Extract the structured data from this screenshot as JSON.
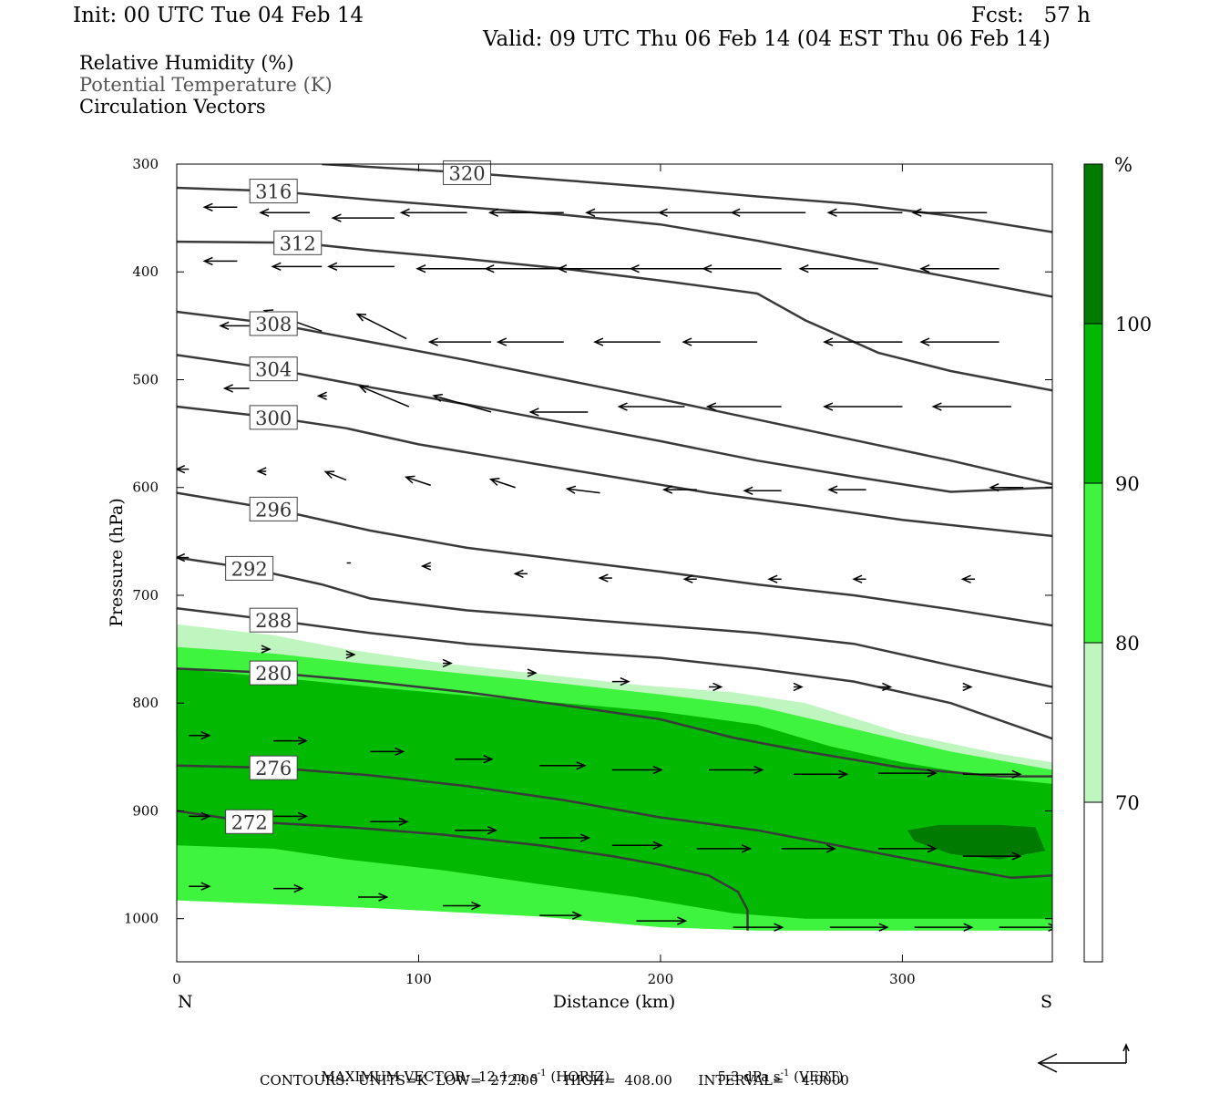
{
  "header": {
    "init": "Init: 00 UTC Tue 04 Feb 14",
    "fcst": "Fcst:   57 h",
    "valid": "Valid: 09 UTC Thu 06 Feb 14 (04 EST Thu 06 Feb 14)"
  },
  "legend_lines": {
    "rh": "Relative Humidity (%)",
    "theta": "Potential Temperature (K)",
    "vectors": "Circulation Vectors"
  },
  "footer": {
    "max_vector_label": "MAXIMUM VECTOR:",
    "horiz_value": "12.1 m s",
    "horiz_exp": "-1",
    "horiz_tag": "(HORIZ)",
    "vert_value": "5.3 dPa s",
    "vert_exp": "-1",
    "vert_tag": "(VERT)",
    "contours": "CONTOURS:  UNITS=K  LOW=  272.00      HIGH=  408.00      INTERVAL=    4.0000"
  },
  "colors": {
    "rh_70_80": "#bff5bf",
    "rh_80_90": "#3ff43f",
    "rh_90_100": "#00b900",
    "rh_100": "#007a00",
    "contour": "#3a3a3a",
    "vector": "#000000"
  },
  "chart_data": {
    "type": "cross-section",
    "xlabel": "Distance (km)",
    "ylabel": "Pressure (hPa)",
    "xlim": [
      0,
      362
    ],
    "ylim": [
      1040,
      300
    ],
    "y_scale": "linear-inverted",
    "x_ticks": [
      0,
      100,
      200,
      300
    ],
    "y_ticks": [
      300,
      400,
      500,
      600,
      700,
      800,
      900,
      1000
    ],
    "x_end_labels": {
      "left": "N",
      "right": "S"
    },
    "colorbar": {
      "unit": "%",
      "levels": [
        70,
        80,
        90,
        100
      ],
      "colors": [
        "#ffffff",
        "#bff5bf",
        "#3ff43f",
        "#00b900",
        "#007a00"
      ]
    },
    "rh_regions": [
      {
        "level": 70,
        "top": [
          [
            0,
            727
          ],
          [
            40,
            737
          ],
          [
            70,
            750
          ],
          [
            110,
            763
          ],
          [
            150,
            773
          ],
          [
            190,
            783
          ],
          [
            230,
            790
          ],
          [
            260,
            800
          ],
          [
            300,
            828
          ],
          [
            340,
            847
          ],
          [
            362,
            855
          ]
        ],
        "bottom": [
          [
            0,
            980
          ],
          [
            362,
            980
          ]
        ]
      },
      {
        "level": 80,
        "top": [
          [
            0,
            748
          ],
          [
            40,
            754
          ],
          [
            80,
            764
          ],
          [
            120,
            773
          ],
          [
            160,
            782
          ],
          [
            200,
            792
          ],
          [
            240,
            803
          ],
          [
            280,
            824
          ],
          [
            320,
            845
          ],
          [
            362,
            862
          ]
        ],
        "bottom": [
          [
            0,
            983
          ],
          [
            80,
            990
          ],
          [
            150,
            998
          ],
          [
            200,
            1008
          ],
          [
            240,
            1011
          ],
          [
            300,
            1011
          ],
          [
            362,
            1011
          ]
        ]
      },
      {
        "level": 90,
        "top": [
          [
            0,
            768
          ],
          [
            40,
            776
          ],
          [
            80,
            785
          ],
          [
            120,
            793
          ],
          [
            160,
            800
          ],
          [
            200,
            808
          ],
          [
            240,
            820
          ],
          [
            270,
            840
          ],
          [
            300,
            855
          ],
          [
            340,
            870
          ],
          [
            362,
            875
          ]
        ],
        "bottom": [
          [
            0,
            932
          ],
          [
            40,
            935
          ],
          [
            70,
            945
          ],
          [
            110,
            955
          ],
          [
            150,
            968
          ],
          [
            190,
            980
          ],
          [
            230,
            995
          ],
          [
            260,
            1000
          ],
          [
            300,
            1000
          ],
          [
            362,
            1000
          ]
        ]
      },
      {
        "level": 100,
        "top": [
          [
            302,
            918
          ],
          [
            315,
            913
          ],
          [
            340,
            913
          ],
          [
            355,
            915
          ],
          [
            359,
            937
          ],
          [
            340,
            945
          ],
          [
            320,
            940
          ],
          [
            305,
            928
          ]
        ],
        "bottom": []
      }
    ],
    "theta_contours": [
      {
        "value": 272,
        "points": [
          [
            0,
            900
          ],
          [
            30,
            910
          ],
          [
            70,
            915
          ],
          [
            110,
            922
          ],
          [
            150,
            932
          ],
          [
            180,
            942
          ],
          [
            200,
            950
          ],
          [
            220,
            960
          ],
          [
            232,
            975
          ],
          [
            236,
            992
          ],
          [
            236,
            1011
          ]
        ]
      },
      {
        "value": 276,
        "points": [
          [
            0,
            858
          ],
          [
            40,
            860
          ],
          [
            80,
            867
          ],
          [
            120,
            877
          ],
          [
            160,
            890
          ],
          [
            200,
            906
          ],
          [
            240,
            918
          ],
          [
            280,
            935
          ],
          [
            320,
            952
          ],
          [
            345,
            962
          ],
          [
            362,
            960
          ]
        ]
      },
      {
        "value": 280,
        "points": [
          [
            0,
            768
          ],
          [
            40,
            772
          ],
          [
            80,
            780
          ],
          [
            120,
            790
          ],
          [
            160,
            802
          ],
          [
            200,
            815
          ],
          [
            230,
            832
          ],
          [
            260,
            845
          ],
          [
            300,
            860
          ],
          [
            340,
            868
          ],
          [
            362,
            868
          ]
        ]
      },
      {
        "value": 288,
        "points": [
          [
            0,
            712
          ],
          [
            40,
            723
          ],
          [
            80,
            735
          ],
          [
            120,
            745
          ],
          [
            160,
            752
          ],
          [
            200,
            758
          ],
          [
            240,
            768
          ],
          [
            280,
            780
          ],
          [
            320,
            800
          ],
          [
            362,
            833
          ]
        ]
      },
      {
        "value": 292,
        "points": [
          [
            0,
            665
          ],
          [
            30,
            675
          ],
          [
            60,
            690
          ],
          [
            80,
            703
          ],
          [
            120,
            714
          ],
          [
            160,
            721
          ],
          [
            200,
            728
          ],
          [
            240,
            735
          ],
          [
            280,
            745
          ],
          [
            320,
            765
          ],
          [
            362,
            785
          ]
        ]
      },
      {
        "value": 296,
        "points": [
          [
            0,
            605
          ],
          [
            40,
            620
          ],
          [
            80,
            640
          ],
          [
            120,
            656
          ],
          [
            160,
            667
          ],
          [
            200,
            678
          ],
          [
            240,
            690
          ],
          [
            280,
            700
          ],
          [
            320,
            713
          ],
          [
            362,
            728
          ]
        ]
      },
      {
        "value": 300,
        "points": [
          [
            0,
            525
          ],
          [
            40,
            535
          ],
          [
            70,
            545
          ],
          [
            100,
            560
          ],
          [
            140,
            575
          ],
          [
            180,
            590
          ],
          [
            220,
            605
          ],
          [
            260,
            617
          ],
          [
            300,
            630
          ],
          [
            362,
            645
          ]
        ]
      },
      {
        "value": 304,
        "points": [
          [
            0,
            477
          ],
          [
            40,
            490
          ],
          [
            80,
            507
          ],
          [
            120,
            523
          ],
          [
            160,
            540
          ],
          [
            200,
            557
          ],
          [
            240,
            575
          ],
          [
            280,
            590
          ],
          [
            320,
            604
          ],
          [
            362,
            600
          ]
        ]
      },
      {
        "value": 308,
        "points": [
          [
            0,
            437
          ],
          [
            40,
            448
          ],
          [
            80,
            465
          ],
          [
            120,
            482
          ],
          [
            160,
            500
          ],
          [
            200,
            518
          ],
          [
            240,
            537
          ],
          [
            280,
            556
          ],
          [
            320,
            575
          ],
          [
            362,
            597
          ]
        ]
      },
      {
        "value": 312,
        "points": [
          [
            0,
            372
          ],
          [
            50,
            373
          ],
          [
            80,
            380
          ],
          [
            120,
            388
          ],
          [
            160,
            397
          ],
          [
            200,
            408
          ],
          [
            240,
            420
          ],
          [
            260,
            445
          ],
          [
            290,
            475
          ],
          [
            320,
            492
          ],
          [
            362,
            510
          ]
        ]
      },
      {
        "value": 316,
        "points": [
          [
            0,
            322
          ],
          [
            40,
            325
          ],
          [
            80,
            333
          ],
          [
            120,
            340
          ],
          [
            160,
            347
          ],
          [
            200,
            356
          ],
          [
            240,
            371
          ],
          [
            280,
            388
          ],
          [
            320,
            405
          ],
          [
            362,
            423
          ]
        ]
      },
      {
        "value": 320,
        "points": [
          [
            60,
            300
          ],
          [
            120,
            308
          ],
          [
            160,
            315
          ],
          [
            200,
            322
          ],
          [
            240,
            330
          ],
          [
            280,
            337
          ],
          [
            320,
            348
          ],
          [
            362,
            363
          ]
        ]
      }
    ],
    "circulation_vectors": [
      [
        25,
        340,
        -0.8,
        0
      ],
      [
        55,
        345,
        -1.2,
        0
      ],
      [
        90,
        350,
        -1.5,
        0
      ],
      [
        120,
        345,
        -1.6,
        0
      ],
      [
        160,
        345,
        -1.8,
        0
      ],
      [
        200,
        345,
        -1.8,
        0
      ],
      [
        230,
        345,
        -1.8,
        0
      ],
      [
        260,
        345,
        -1.8,
        0
      ],
      [
        300,
        345,
        -1.8,
        0
      ],
      [
        335,
        345,
        -1.8,
        0
      ],
      [
        25,
        390,
        -0.8,
        0
      ],
      [
        60,
        395,
        -1.2,
        0
      ],
      [
        90,
        395,
        -1.6,
        0
      ],
      [
        130,
        397,
        -1.8,
        0
      ],
      [
        160,
        397,
        -1.9,
        0
      ],
      [
        190,
        397,
        -1.9,
        0
      ],
      [
        220,
        397,
        -1.9,
        0
      ],
      [
        250,
        397,
        -1.9,
        0
      ],
      [
        290,
        397,
        -1.9,
        0
      ],
      [
        340,
        397,
        -1.9,
        0
      ],
      [
        30,
        450,
        -0.7,
        0
      ],
      [
        60,
        455,
        -1.4,
        -0.5
      ],
      [
        95,
        462,
        -1.2,
        -0.6
      ],
      [
        130,
        465,
        -1.5,
        0
      ],
      [
        160,
        465,
        -1.6,
        0
      ],
      [
        200,
        465,
        -1.6,
        0
      ],
      [
        240,
        465,
        -1.8,
        0
      ],
      [
        300,
        465,
        -1.9,
        0
      ],
      [
        340,
        465,
        -1.9,
        0
      ],
      [
        30,
        508,
        -0.6,
        0
      ],
      [
        62,
        515,
        -0.2,
        0
      ],
      [
        96,
        525,
        -1.2,
        -0.5
      ],
      [
        130,
        530,
        -1.4,
        -0.4
      ],
      [
        170,
        530,
        -1.4,
        0
      ],
      [
        210,
        525,
        -1.6,
        0
      ],
      [
        250,
        525,
        -1.8,
        0
      ],
      [
        300,
        525,
        -1.9,
        0
      ],
      [
        345,
        525,
        -1.9,
        0
      ],
      [
        5,
        583,
        -0.3,
        0
      ],
      [
        37,
        585,
        -0.2,
        0
      ],
      [
        70,
        593,
        -0.5,
        -0.2
      ],
      [
        105,
        598,
        -0.6,
        -0.2
      ],
      [
        140,
        600,
        -0.6,
        -0.2
      ],
      [
        175,
        605,
        -0.8,
        -0.1
      ],
      [
        215,
        602,
        -0.8,
        0
      ],
      [
        250,
        603,
        -0.9,
        0
      ],
      [
        285,
        602,
        -0.9,
        0
      ],
      [
        350,
        600,
        -0.8,
        0
      ],
      [
        5,
        665,
        -0.3,
        0
      ],
      [
        38,
        668,
        -0.2,
        0
      ],
      [
        72,
        670,
        -0.1,
        0
      ],
      [
        105,
        673,
        -0.2,
        0
      ],
      [
        145,
        680,
        -0.3,
        0
      ],
      [
        180,
        684,
        -0.3,
        0
      ],
      [
        215,
        685,
        -0.3,
        0
      ],
      [
        250,
        685,
        -0.3,
        0
      ],
      [
        285,
        685,
        -0.3,
        0
      ],
      [
        330,
        685,
        -0.3,
        0
      ],
      [
        35,
        750,
        0.2,
        0
      ],
      [
        70,
        755,
        0.2,
        0
      ],
      [
        110,
        763,
        0.2,
        0
      ],
      [
        145,
        772,
        0.2,
        0
      ],
      [
        180,
        780,
        0.4,
        0
      ],
      [
        220,
        785,
        0.3,
        0
      ],
      [
        255,
        785,
        0.2,
        0
      ],
      [
        290,
        785,
        0.3,
        0
      ],
      [
        325,
        785,
        0.2,
        0
      ],
      [
        5,
        830,
        0.5,
        0
      ],
      [
        40,
        835,
        0.8,
        0
      ],
      [
        80,
        845,
        0.8,
        0
      ],
      [
        115,
        852,
        0.9,
        0
      ],
      [
        150,
        858,
        1.1,
        0
      ],
      [
        180,
        862,
        1.2,
        0
      ],
      [
        220,
        862,
        1.3,
        0
      ],
      [
        255,
        866,
        1.3,
        0
      ],
      [
        290,
        865,
        1.4,
        0
      ],
      [
        325,
        866,
        1.4,
        0
      ],
      [
        5,
        905,
        0.5,
        0
      ],
      [
        40,
        905,
        0.8,
        0
      ],
      [
        80,
        910,
        0.9,
        0
      ],
      [
        115,
        918,
        1.0,
        0
      ],
      [
        150,
        925,
        1.2,
        0
      ],
      [
        180,
        932,
        1.2,
        0
      ],
      [
        215,
        935,
        1.3,
        0
      ],
      [
        250,
        935,
        1.3,
        0
      ],
      [
        290,
        935,
        1.4,
        0
      ],
      [
        325,
        942,
        1.4,
        0
      ],
      [
        5,
        970,
        0.5,
        0
      ],
      [
        40,
        972,
        0.7,
        0
      ],
      [
        75,
        980,
        0.7,
        0
      ],
      [
        110,
        988,
        0.9,
        0
      ],
      [
        150,
        997,
        1.0,
        0
      ],
      [
        190,
        1002,
        1.2,
        0
      ],
      [
        230,
        1008,
        1.2,
        0
      ],
      [
        270,
        1008,
        1.4,
        0
      ],
      [
        305,
        1008,
        1.4,
        0
      ],
      [
        340,
        1008,
        1.4,
        0
      ]
    ]
  }
}
